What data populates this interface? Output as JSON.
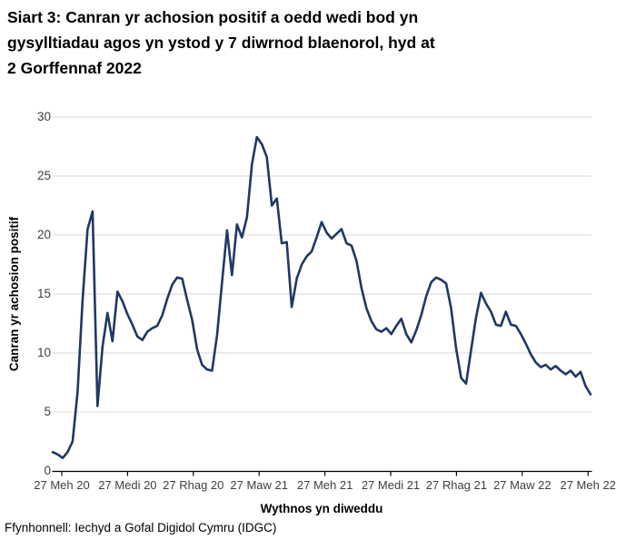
{
  "header": {
    "title_lines": [
      "Siart 3: Canran yr achosion positif a oedd wedi bod yn",
      "gysylltiadau agos yn ystod y 7 diwrnod blaenorol, hyd at",
      "2 Gorffennaf 2022"
    ]
  },
  "chart_data": {
    "type": "line",
    "title": "Siart 3: Canran yr achosion positif a oedd wedi bod yn gysylltiadau agos yn ystod y 7 diwrnod blaenorol, hyd at 2 Gorffennaf 2022",
    "xlabel": "Wythnos yn diweddu",
    "ylabel": "Canran yr achosion positif",
    "ylim": [
      0,
      30
    ],
    "y_ticks": [
      0,
      5,
      10,
      15,
      20,
      25,
      30
    ],
    "x_ticks": [
      "27 Meh 20",
      "27 Medi 20",
      "27 Rhag 20",
      "27 Maw 21",
      "27 Meh 21",
      "27 Medi 21",
      "27 Rhag 21",
      "27 Maw 22",
      "27 Meh 22"
    ],
    "x_tick_indices": [
      2,
      15,
      28,
      41,
      54,
      67,
      80,
      93,
      106
    ],
    "grid": "horizontal",
    "legend": "none",
    "series": [
      {
        "name": "Canran yr achosion positif",
        "color": "#1f3864",
        "values": [
          1.6,
          1.4,
          1.1,
          1.6,
          2.5,
          6.7,
          14.5,
          20.5,
          22.0,
          5.5,
          10.5,
          13.4,
          11.0,
          15.2,
          14.4,
          13.3,
          12.4,
          11.4,
          11.1,
          11.8,
          12.1,
          12.3,
          13.2,
          14.6,
          15.8,
          16.4,
          16.3,
          14.5,
          12.8,
          10.3,
          9.0,
          8.6,
          8.5,
          11.5,
          16.0,
          20.4,
          16.6,
          20.9,
          19.8,
          21.5,
          26.0,
          28.3,
          27.7,
          26.6,
          22.5,
          23.1,
          19.3,
          19.4,
          13.9,
          16.3,
          17.5,
          18.2,
          18.6,
          19.8,
          21.1,
          20.2,
          19.7,
          20.1,
          20.5,
          19.3,
          19.1,
          17.8,
          15.5,
          13.8,
          12.7,
          12.0,
          11.8,
          12.1,
          11.6,
          12.3,
          12.9,
          11.6,
          10.9,
          11.9,
          13.2,
          14.8,
          16.0,
          16.4,
          16.2,
          15.9,
          13.8,
          10.4,
          7.9,
          7.4,
          10.2,
          13.0,
          15.1,
          14.2,
          13.5,
          12.4,
          12.3,
          13.5,
          12.4,
          12.3,
          11.6,
          10.8,
          9.9,
          9.2,
          8.8,
          9.0,
          8.6,
          8.9,
          8.5,
          8.2,
          8.5,
          8.0,
          8.4,
          7.2,
          6.5
        ]
      }
    ]
  },
  "footer": {
    "source": "Ffynhonnell: Iechyd a Gofal Digidol Cymru (IDGC)"
  },
  "colors": {
    "line": "#1f3864",
    "gridline": "#d9d9d9",
    "axis": "#000000",
    "tick_text": "#3f3f3f"
  }
}
